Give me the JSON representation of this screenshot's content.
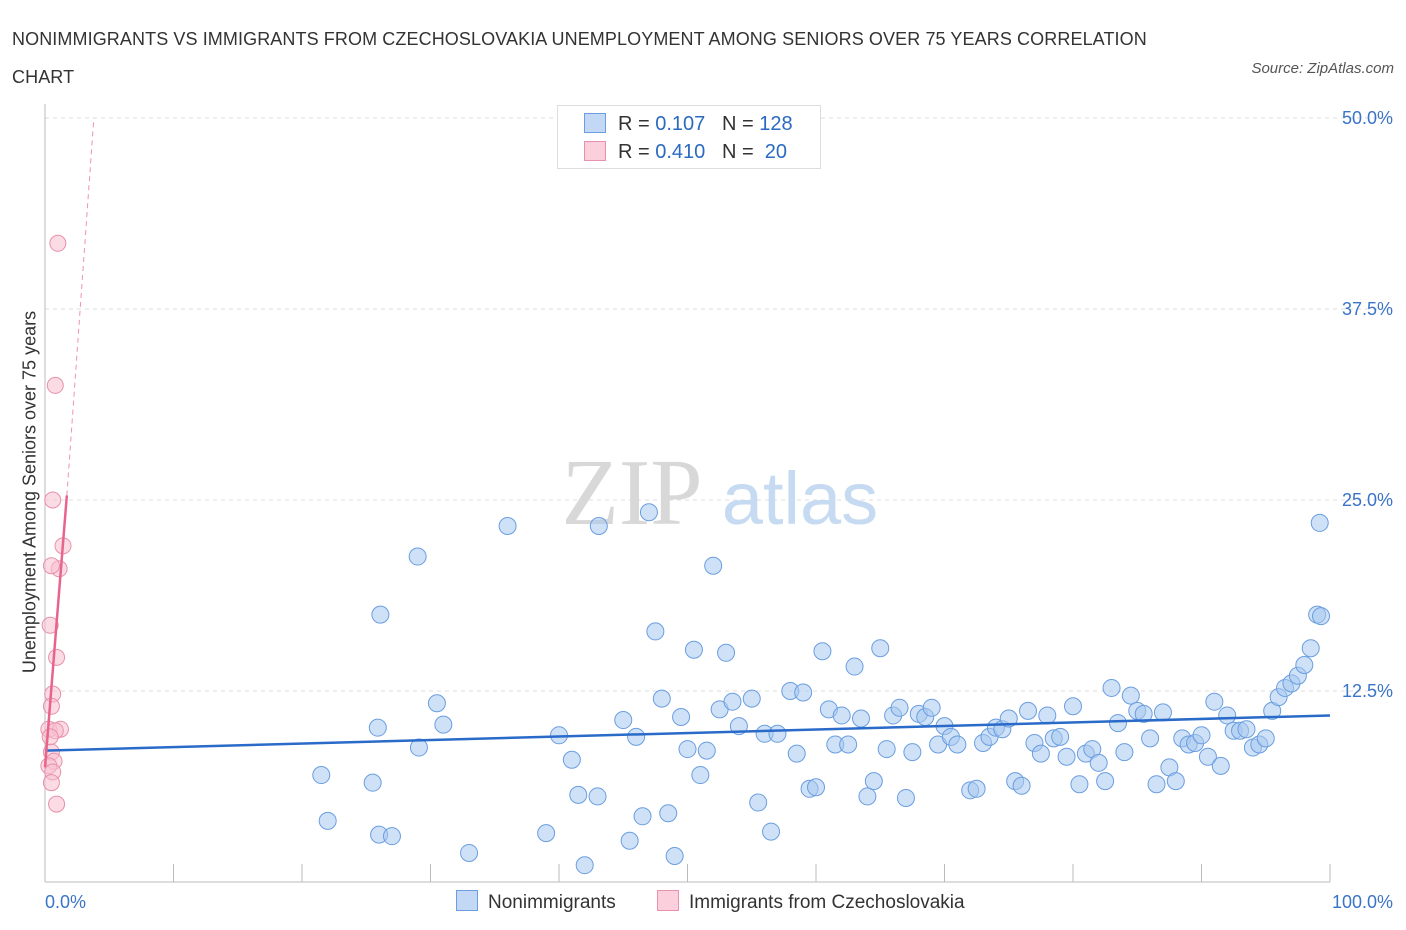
{
  "title": "NONIMMIGRANTS VS IMMIGRANTS FROM CZECHOSLOVAKIA UNEMPLOYMENT AMONG SENIORS OVER 75 YEARS CORRELATION CHART",
  "source": "Source: ZipAtlas.com",
  "watermark": {
    "zip": "ZIP",
    "atlas": "atlas"
  },
  "legend_top": {
    "rows": [
      {
        "r_label": "R =",
        "r_value": "0.107",
        "n_label": "N =",
        "n_value": "128",
        "color": "#a8c8f0"
      },
      {
        "r_label": "R =",
        "r_value": "0.410",
        "n_label": "N =",
        "n_value": "20",
        "color": "#f8bfd0"
      }
    ]
  },
  "bottom_legend": {
    "nonimmigrants": "Nonimmigrants",
    "immigrants": "Immigrants from Czechoslovakia"
  },
  "colors": {
    "blue_fill": "#a8c8f0",
    "blue_stroke": "#6a9ee0",
    "blue_line": "#2a6ac8",
    "pink_fill": "#f8bfd0",
    "pink_stroke": "#e890ac",
    "pink_line": "#e8648c",
    "grid": "#dddddd",
    "tick_label": "#3a74c8"
  },
  "chart_data": {
    "type": "scatter",
    "title": "NONIMMIGRANTS VS IMMIGRANTS FROM CZECHOSLOVAKIA UNEMPLOYMENT AMONG SENIORS OVER 75 YEARS CORRELATION CHART",
    "xlabel": "",
    "ylabel": "Unemployment Among Seniors over 75 years",
    "xlim": [
      0,
      100
    ],
    "ylim": [
      0,
      50
    ],
    "x_tick_labels": [
      "0.0%",
      "100.0%"
    ],
    "y_tick_labels": [
      "12.5%",
      "25.0%",
      "37.5%",
      "50.0%"
    ],
    "y_ticks": [
      12.5,
      25.0,
      37.5,
      50.0
    ],
    "grid": "horizontal dashed",
    "legend": "top-center",
    "series": [
      {
        "name": "Nonimmigrants",
        "r": 0.107,
        "n": 128,
        "trend": {
          "x": [
            0,
            100
          ],
          "y": [
            8.6,
            10.9
          ]
        },
        "points": [
          [
            25.5,
            6.5
          ],
          [
            26,
            3.1
          ],
          [
            27,
            3.0
          ],
          [
            25.9,
            10.1
          ],
          [
            26.1,
            17.5
          ],
          [
            29,
            21.3
          ],
          [
            29.1,
            8.8
          ],
          [
            30.5,
            11.7
          ],
          [
            31,
            10.3
          ],
          [
            33,
            1.9
          ],
          [
            36,
            23.3
          ],
          [
            39,
            3.2
          ],
          [
            40,
            9.6
          ],
          [
            41,
            8.0
          ],
          [
            41.5,
            5.7
          ],
          [
            42,
            1.1
          ],
          [
            43,
            5.6
          ],
          [
            43.1,
            23.3
          ],
          [
            45,
            10.6
          ],
          [
            45.5,
            2.7
          ],
          [
            46,
            9.5
          ],
          [
            46.5,
            4.3
          ],
          [
            47,
            24.2
          ],
          [
            47.5,
            16.4
          ],
          [
            48,
            12.0
          ],
          [
            48.5,
            4.5
          ],
          [
            49,
            1.7
          ],
          [
            49.5,
            10.8
          ],
          [
            50,
            8.7
          ],
          [
            50.5,
            15.2
          ],
          [
            51,
            7.0
          ],
          [
            51.5,
            8.6
          ],
          [
            52,
            20.7
          ],
          [
            52.5,
            11.3
          ],
          [
            53,
            15.0
          ],
          [
            53.5,
            11.8
          ],
          [
            54,
            10.2
          ],
          [
            55,
            12.0
          ],
          [
            55.5,
            5.2
          ],
          [
            56,
            9.7
          ],
          [
            56.5,
            3.3
          ],
          [
            57,
            9.7
          ],
          [
            58,
            12.5
          ],
          [
            58.5,
            8.4
          ],
          [
            59,
            12.4
          ],
          [
            59.5,
            6.1
          ],
          [
            60,
            6.2
          ],
          [
            60.5,
            15.1
          ],
          [
            61,
            11.3
          ],
          [
            61.5,
            9.0
          ],
          [
            62,
            10.9
          ],
          [
            62.5,
            9.0
          ],
          [
            63,
            14.1
          ],
          [
            63.5,
            10.7
          ],
          [
            64,
            5.6
          ],
          [
            64.5,
            6.6
          ],
          [
            65,
            15.3
          ],
          [
            65.5,
            8.7
          ],
          [
            66,
            10.9
          ],
          [
            66.5,
            11.4
          ],
          [
            67,
            5.5
          ],
          [
            67.5,
            8.5
          ],
          [
            68,
            11.0
          ],
          [
            68.5,
            10.8
          ],
          [
            69,
            11.4
          ],
          [
            69.5,
            9.0
          ],
          [
            70,
            10.2
          ],
          [
            70.5,
            9.5
          ],
          [
            71,
            9.0
          ],
          [
            72,
            6.0
          ],
          [
            72.5,
            6.1
          ],
          [
            73,
            9.1
          ],
          [
            73.5,
            9.5
          ],
          [
            74,
            10.1
          ],
          [
            74.5,
            10.0
          ],
          [
            75,
            10.7
          ],
          [
            75.5,
            6.6
          ],
          [
            76,
            6.3
          ],
          [
            76.5,
            11.2
          ],
          [
            77,
            9.1
          ],
          [
            77.5,
            8.4
          ],
          [
            78,
            10.9
          ],
          [
            78.5,
            9.4
          ],
          [
            79,
            9.5
          ],
          [
            79.5,
            8.2
          ],
          [
            80,
            11.5
          ],
          [
            80.5,
            6.4
          ],
          [
            81,
            8.4
          ],
          [
            81.5,
            8.7
          ],
          [
            82,
            7.8
          ],
          [
            82.5,
            6.6
          ],
          [
            83,
            12.7
          ],
          [
            83.5,
            10.4
          ],
          [
            84,
            8.5
          ],
          [
            84.5,
            12.2
          ],
          [
            85,
            11.2
          ],
          [
            85.5,
            11.0
          ],
          [
            86,
            9.4
          ],
          [
            86.5,
            6.4
          ],
          [
            87,
            11.1
          ],
          [
            87.5,
            7.5
          ],
          [
            88,
            6.6
          ],
          [
            88.5,
            9.4
          ],
          [
            89,
            9.0
          ],
          [
            89.5,
            9.1
          ],
          [
            90,
            9.6
          ],
          [
            90.5,
            8.2
          ],
          [
            91,
            11.8
          ],
          [
            91.5,
            7.6
          ],
          [
            92,
            10.9
          ],
          [
            92.5,
            9.9
          ],
          [
            93,
            9.9
          ],
          [
            93.5,
            10.0
          ],
          [
            94,
            8.8
          ],
          [
            94.5,
            9.0
          ],
          [
            95,
            9.4
          ],
          [
            95.5,
            11.2
          ],
          [
            96,
            12.1
          ],
          [
            96.5,
            12.7
          ],
          [
            97,
            13.0
          ],
          [
            97.5,
            13.5
          ],
          [
            98,
            14.2
          ],
          [
            98.5,
            15.3
          ],
          [
            99,
            17.5
          ],
          [
            99.3,
            17.4
          ],
          [
            99.2,
            23.5
          ],
          [
            21.5,
            7.0
          ],
          [
            22,
            4.0
          ]
        ]
      },
      {
        "name": "Immigrants from Czechoslovakia",
        "r": 0.41,
        "n": 20,
        "trend": {
          "x": [
            0,
            1.7
          ],
          "y": [
            7.5,
            25.3
          ]
        },
        "trend_extension": {
          "x": [
            1.7,
            3.8
          ],
          "y": [
            25.3,
            50
          ]
        },
        "points": [
          [
            1.0,
            41.8
          ],
          [
            0.8,
            32.5
          ],
          [
            0.6,
            25.0
          ],
          [
            1.4,
            22.0
          ],
          [
            1.1,
            20.5
          ],
          [
            0.5,
            20.7
          ],
          [
            0.4,
            16.8
          ],
          [
            0.9,
            14.7
          ],
          [
            0.6,
            12.3
          ],
          [
            0.5,
            11.5
          ],
          [
            0.3,
            10.0
          ],
          [
            1.2,
            10.0
          ],
          [
            0.8,
            9.9
          ],
          [
            0.4,
            9.5
          ],
          [
            0.5,
            8.5
          ],
          [
            0.7,
            7.9
          ],
          [
            0.3,
            7.6
          ],
          [
            0.6,
            7.2
          ],
          [
            0.5,
            6.5
          ],
          [
            0.9,
            5.1
          ]
        ]
      }
    ]
  }
}
